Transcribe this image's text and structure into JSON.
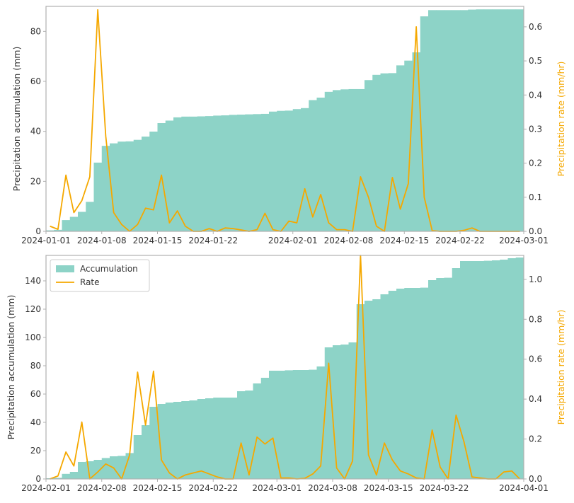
{
  "colors": {
    "accumulation": "#8dd3c7",
    "rate": "#f5a800",
    "frame": "#b0b0b0",
    "text": "#333333"
  },
  "chart_data": [
    {
      "type": "bar+line",
      "xlabel": "",
      "ylabel_left": "Precipitation accumulation (mm)",
      "ylabel_right": "Precipitation rate (mm/hr)",
      "x_range": [
        "2024-01-01",
        "2024-03-01"
      ],
      "xticks": [
        "2024-01-01",
        "2024-01-08",
        "2024-01-15",
        "2024-01-22",
        "2024-02-01",
        "2024-02-08",
        "2024-02-15",
        "2024-02-22",
        "2024-03-01"
      ],
      "ylim_left": [
        0,
        90
      ],
      "yticks_left": [
        0,
        20,
        40,
        60,
        80
      ],
      "ylim_right": [
        0,
        0.66
      ],
      "yticks_right": [
        0.0,
        0.1,
        0.2,
        0.3,
        0.4,
        0.5,
        0.6
      ],
      "legend": false,
      "grid": false,
      "series": [
        {
          "name": "Accumulation",
          "kind": "bar",
          "x": [
            "2024-01-01",
            "2024-01-02",
            "2024-01-03",
            "2024-01-04",
            "2024-01-05",
            "2024-01-06",
            "2024-01-07",
            "2024-01-08",
            "2024-01-09",
            "2024-01-10",
            "2024-01-11",
            "2024-01-12",
            "2024-01-13",
            "2024-01-14",
            "2024-01-15",
            "2024-01-16",
            "2024-01-17",
            "2024-01-18",
            "2024-01-19",
            "2024-01-20",
            "2024-01-21",
            "2024-01-22",
            "2024-01-23",
            "2024-01-24",
            "2024-01-25",
            "2024-01-26",
            "2024-01-27",
            "2024-01-28",
            "2024-01-29",
            "2024-01-30",
            "2024-01-31",
            "2024-02-01",
            "2024-02-02",
            "2024-02-03",
            "2024-02-04",
            "2024-02-05",
            "2024-02-06",
            "2024-02-07",
            "2024-02-08",
            "2024-02-09",
            "2024-02-10",
            "2024-02-11",
            "2024-02-12",
            "2024-02-13",
            "2024-02-14",
            "2024-02-15",
            "2024-02-16",
            "2024-02-17",
            "2024-02-18",
            "2024-02-19",
            "2024-02-20",
            "2024-02-21",
            "2024-02-22",
            "2024-02-23",
            "2024-02-24",
            "2024-02-25",
            "2024-02-26",
            "2024-02-27",
            "2024-02-28",
            "2024-02-29"
          ],
          "values": [
            0.4,
            0.6,
            4.5,
            5.8,
            7.8,
            11.8,
            27.5,
            34.2,
            35.2,
            35.9,
            36.0,
            36.6,
            37.9,
            39.9,
            43.3,
            44.3,
            45.6,
            45.9,
            45.9,
            46.0,
            46.1,
            46.3,
            46.4,
            46.6,
            46.7,
            46.8,
            46.9,
            47.0,
            47.9,
            48.2,
            48.3,
            48.9,
            49.3,
            52.5,
            53.5,
            55.8,
            56.5,
            56.8,
            56.9,
            56.9,
            60.5,
            62.6,
            63.2,
            63.3,
            66.4,
            68.3,
            71.6,
            86.0,
            88.5,
            88.5,
            88.5,
            88.5,
            88.5,
            88.7,
            88.8,
            88.8,
            88.8,
            88.8,
            88.8,
            88.8
          ]
        },
        {
          "name": "Rate",
          "kind": "line",
          "x": [
            "2024-01-01",
            "2024-01-02",
            "2024-01-03",
            "2024-01-04",
            "2024-01-05",
            "2024-01-06",
            "2024-01-07",
            "2024-01-08",
            "2024-01-09",
            "2024-01-10",
            "2024-01-11",
            "2024-01-12",
            "2024-01-13",
            "2024-01-14",
            "2024-01-15",
            "2024-01-16",
            "2024-01-17",
            "2024-01-18",
            "2024-01-19",
            "2024-01-20",
            "2024-01-21",
            "2024-01-22",
            "2024-01-23",
            "2024-01-24",
            "2024-01-25",
            "2024-01-26",
            "2024-01-27",
            "2024-01-28",
            "2024-01-29",
            "2024-01-30",
            "2024-01-31",
            "2024-02-01",
            "2024-02-02",
            "2024-02-03",
            "2024-02-04",
            "2024-02-05",
            "2024-02-06",
            "2024-02-07",
            "2024-02-08",
            "2024-02-09",
            "2024-02-10",
            "2024-02-11",
            "2024-02-12",
            "2024-02-13",
            "2024-02-14",
            "2024-02-15",
            "2024-02-16",
            "2024-02-17",
            "2024-02-18",
            "2024-02-19",
            "2024-02-20",
            "2024-02-21",
            "2024-02-22",
            "2024-02-23",
            "2024-02-24",
            "2024-02-25",
            "2024-02-26",
            "2024-02-27",
            "2024-02-28",
            "2024-02-29"
          ],
          "values": [
            0.015,
            0.006,
            0.165,
            0.055,
            0.09,
            0.16,
            0.65,
            0.28,
            0.055,
            0.02,
            0.0,
            0.02,
            0.068,
            0.063,
            0.165,
            0.025,
            0.06,
            0.015,
            0.0,
            0.0,
            0.008,
            0.0,
            0.01,
            0.008,
            0.004,
            0.0,
            0.005,
            0.053,
            0.005,
            0.0,
            0.03,
            0.025,
            0.125,
            0.042,
            0.108,
            0.025,
            0.005,
            0.005,
            0.0,
            0.16,
            0.1,
            0.015,
            0.0,
            0.158,
            0.065,
            0.14,
            0.6,
            0.1,
            0.002,
            0.0,
            0.0,
            0.0,
            0.003,
            0.01,
            0.0,
            0.0,
            0.0,
            0.0,
            0.0,
            0.0
          ]
        }
      ]
    },
    {
      "type": "bar+line",
      "xlabel": "",
      "ylabel_left": "Precipitation accumulation (mm)",
      "ylabel_right": "Precipitation rate (mm/hr)",
      "x_range": [
        "2024-02-01",
        "2024-04-01"
      ],
      "xticks": [
        "2024-02-01",
        "2024-02-08",
        "2024-02-15",
        "2024-02-22",
        "2024-03-01",
        "2024-03-08",
        "2024-03-15",
        "2024-03-22",
        "2024-04-01"
      ],
      "ylim_left": [
        0,
        158
      ],
      "yticks_left": [
        0,
        20,
        40,
        60,
        80,
        100,
        120,
        140
      ],
      "ylim_right": [
        0,
        1.12
      ],
      "yticks_right": [
        0.0,
        0.2,
        0.4,
        0.6,
        0.8,
        1.0
      ],
      "legend": true,
      "legend_loc": "upper-left",
      "grid": false,
      "series": [
        {
          "name": "Accumulation",
          "kind": "bar",
          "x": [
            "2024-02-01",
            "2024-02-02",
            "2024-02-03",
            "2024-02-04",
            "2024-02-05",
            "2024-02-06",
            "2024-02-07",
            "2024-02-08",
            "2024-02-09",
            "2024-02-10",
            "2024-02-11",
            "2024-02-12",
            "2024-02-13",
            "2024-02-14",
            "2024-02-15",
            "2024-02-16",
            "2024-02-17",
            "2024-02-18",
            "2024-02-19",
            "2024-02-20",
            "2024-02-21",
            "2024-02-22",
            "2024-02-23",
            "2024-02-24",
            "2024-02-25",
            "2024-02-26",
            "2024-02-27",
            "2024-02-28",
            "2024-02-29",
            "2024-03-01",
            "2024-03-02",
            "2024-03-03",
            "2024-03-04",
            "2024-03-05",
            "2024-03-06",
            "2024-03-07",
            "2024-03-08",
            "2024-03-09",
            "2024-03-10",
            "2024-03-11",
            "2024-03-12",
            "2024-03-13",
            "2024-03-14",
            "2024-03-15",
            "2024-03-16",
            "2024-03-17",
            "2024-03-18",
            "2024-03-19",
            "2024-03-20",
            "2024-03-21",
            "2024-03-22",
            "2024-03-23",
            "2024-03-24",
            "2024-03-25",
            "2024-03-26",
            "2024-03-27",
            "2024-03-28",
            "2024-03-29",
            "2024-03-30",
            "2024-03-31"
          ],
          "values": [
            0.5,
            0.8,
            3.6,
            5.0,
            12.0,
            12.5,
            13.5,
            14.8,
            16.0,
            16.3,
            18.3,
            31.0,
            38.0,
            51.0,
            53.0,
            54.0,
            54.5,
            55.0,
            55.5,
            56.5,
            57.0,
            57.5,
            57.5,
            57.5,
            62.0,
            62.5,
            67.5,
            71.5,
            76.5,
            76.5,
            76.8,
            77.0,
            77.0,
            77.2,
            79.5,
            93.0,
            94.5,
            95.0,
            96.5,
            123.5,
            126.0,
            127.0,
            130.5,
            133.0,
            134.5,
            135.0,
            135.0,
            135.2,
            140.5,
            142.0,
            142.2,
            149.0,
            154.0,
            154.0,
            154.0,
            154.2,
            154.5,
            155.0,
            156.0,
            156.5
          ]
        },
        {
          "name": "Rate",
          "kind": "line",
          "x": [
            "2024-02-01",
            "2024-02-02",
            "2024-02-03",
            "2024-02-04",
            "2024-02-05",
            "2024-02-06",
            "2024-02-07",
            "2024-02-08",
            "2024-02-09",
            "2024-02-10",
            "2024-02-11",
            "2024-02-12",
            "2024-02-13",
            "2024-02-14",
            "2024-02-15",
            "2024-02-16",
            "2024-02-17",
            "2024-02-18",
            "2024-02-19",
            "2024-02-20",
            "2024-02-21",
            "2024-02-22",
            "2024-02-23",
            "2024-02-24",
            "2024-02-25",
            "2024-02-26",
            "2024-02-27",
            "2024-02-28",
            "2024-02-29",
            "2024-03-01",
            "2024-03-02",
            "2024-03-03",
            "2024-03-04",
            "2024-03-05",
            "2024-03-06",
            "2024-03-07",
            "2024-03-08",
            "2024-03-09",
            "2024-03-10",
            "2024-03-11",
            "2024-03-12",
            "2024-03-13",
            "2024-03-14",
            "2024-03-15",
            "2024-03-16",
            "2024-03-17",
            "2024-03-18",
            "2024-03-19",
            "2024-03-20",
            "2024-03-21",
            "2024-03-22",
            "2024-03-23",
            "2024-03-24",
            "2024-03-25",
            "2024-03-26",
            "2024-03-27",
            "2024-03-28",
            "2024-03-29",
            "2024-03-30",
            "2024-03-31"
          ],
          "values": [
            0.0,
            0.015,
            0.135,
            0.065,
            0.285,
            0.0,
            0.035,
            0.075,
            0.055,
            0.0,
            0.12,
            0.535,
            0.27,
            0.54,
            0.095,
            0.03,
            0.0,
            0.02,
            0.03,
            0.04,
            0.025,
            0.01,
            0.0,
            0.0,
            0.18,
            0.02,
            0.21,
            0.175,
            0.205,
            0.005,
            0.005,
            0.0,
            0.003,
            0.025,
            0.065,
            0.58,
            0.055,
            0.0,
            0.09,
            1.12,
            0.12,
            0.02,
            0.18,
            0.095,
            0.04,
            0.025,
            0.005,
            0.0,
            0.245,
            0.06,
            0.0,
            0.32,
            0.185,
            0.01,
            0.005,
            0.0,
            0.0,
            0.035,
            0.04,
            0.0
          ]
        }
      ]
    }
  ]
}
